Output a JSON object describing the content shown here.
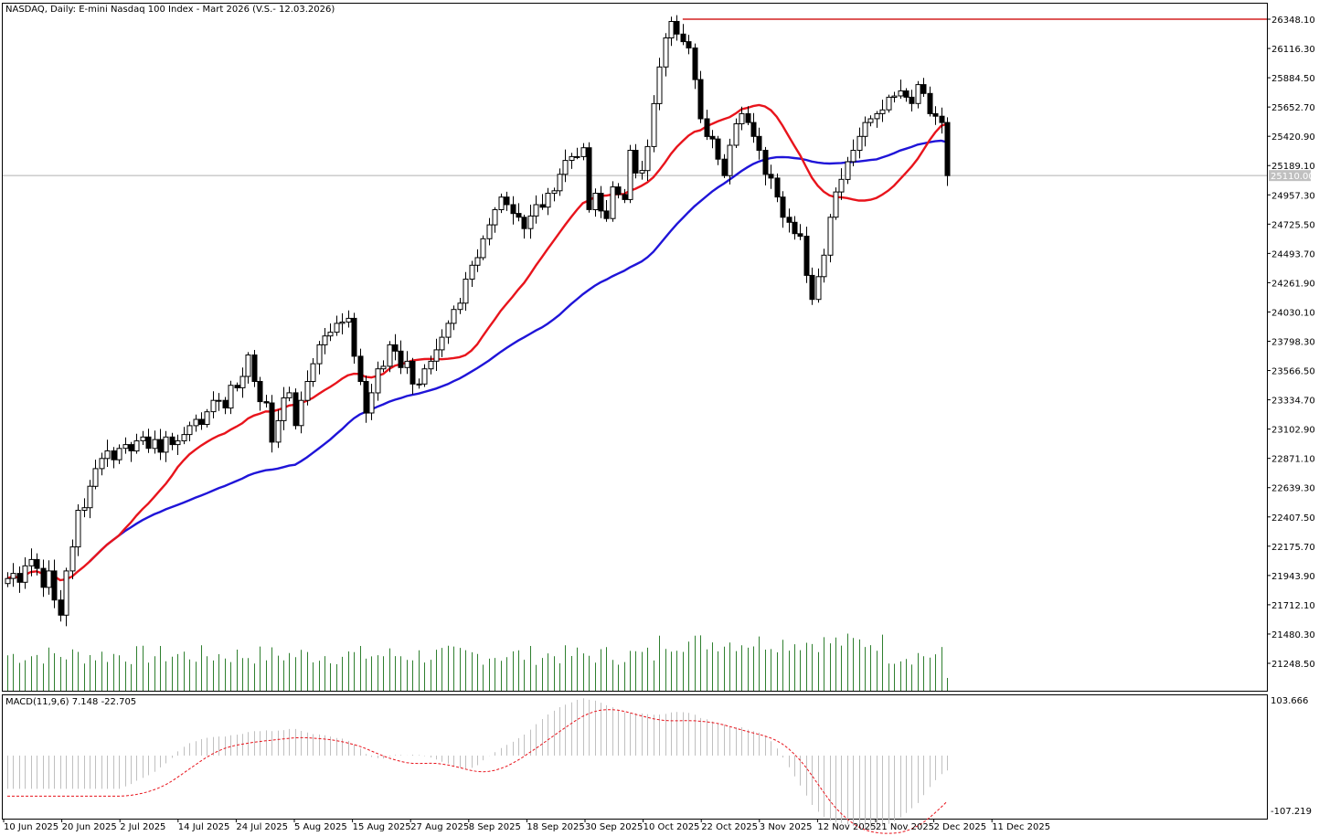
{
  "header": {
    "symbol_text": "NASDAQ, Daily:  E-mini Nasdaq 100 Index - Mart 2026 (V.S.- 12.03.2026)",
    "current_price_label": "25110.00"
  },
  "macd": {
    "label": "MACD(11,9,6) 7.148 -22.705",
    "max_label": "103.666",
    "min_label": "-107.219"
  },
  "colors": {
    "sma_fast": "#e8141c",
    "sma_slow": "#1f14d8",
    "resistance": "#d42020",
    "volume": "#2f7f2f",
    "macd_hist": "#c0c0c0",
    "macd_signal": "#e8141c",
    "candle": "#000000"
  },
  "chart_data": {
    "type": "candlestick",
    "y_ticks": [
      "26348.10",
      "26116.30",
      "25884.50",
      "25652.70",
      "25420.90",
      "25189.10",
      "24957.30",
      "24725.50",
      "24493.70",
      "24261.90",
      "24030.10",
      "23798.30",
      "23566.50",
      "23334.70",
      "23102.90",
      "22871.10",
      "22639.30",
      "22407.50",
      "22175.70",
      "21943.90",
      "21712.10",
      "21480.30",
      "21248.50"
    ],
    "x_ticks": [
      "10 Jun 2025",
      "20 Jun 2025",
      "2 Jul 2025",
      "14 Jul 2025",
      "24 Jul 2025",
      "5 Aug 2025",
      "15 Aug 2025",
      "27 Aug 2025",
      "8 Sep 2025",
      "18 Sep 2025",
      "30 Sep 2025",
      "10 Oct 2025",
      "22 Oct 2025",
      "3 Nov 2025",
      "12 Nov 2025",
      "21 Nov 2025",
      "2 Dec 2025",
      "11 Dec 2025"
    ],
    "ylim": [
      21100,
      26470
    ],
    "resistance_level": 26348.1,
    "current_price": 25110.0,
    "closes": [
      21920,
      21960,
      21890,
      22020,
      22070,
      22000,
      21850,
      21980,
      21750,
      21630,
      21980,
      22170,
      22460,
      22480,
      22650,
      22790,
      22870,
      22930,
      22860,
      22950,
      22980,
      22930,
      23010,
      23040,
      22950,
      23020,
      22920,
      23040,
      22980,
      23010,
      23060,
      23130,
      23180,
      23140,
      23240,
      23330,
      23330,
      23270,
      23450,
      23430,
      23520,
      23690,
      23480,
      23320,
      23310,
      23000,
      23170,
      23350,
      23390,
      23130,
      23330,
      23480,
      23620,
      23770,
      23840,
      23870,
      23940,
      23950,
      23980,
      23680,
      23480,
      23230,
      23390,
      23580,
      23600,
      23770,
      23720,
      23590,
      23640,
      23460,
      23460,
      23580,
      23640,
      23730,
      23830,
      23940,
      24050,
      24100,
      24290,
      24400,
      24460,
      24610,
      24720,
      24840,
      24940,
      24880,
      24810,
      24780,
      24690,
      24790,
      24880,
      24860,
      24970,
      24990,
      25120,
      25230,
      25260,
      25260,
      25330,
      24840,
      24970,
      24830,
      24770,
      25020,
      24960,
      24920,
      25310,
      25130,
      25150,
      25340,
      25680,
      25970,
      26200,
      26330,
      26230,
      26170,
      26120,
      25870,
      25560,
      25420,
      25400,
      25240,
      25110,
      25350,
      25520,
      25600,
      25530,
      25420,
      25310,
      25120,
      25090,
      24940,
      24780,
      24740,
      24650,
      24630,
      24320,
      24130,
      24310,
      24480,
      24780,
      24980,
      25080,
      25220,
      25310,
      25420,
      25530,
      25560,
      25600,
      25630,
      25730,
      25740,
      25780,
      25730,
      25680,
      25830,
      25760,
      25600,
      25580,
      25530,
      25110
    ]
  }
}
